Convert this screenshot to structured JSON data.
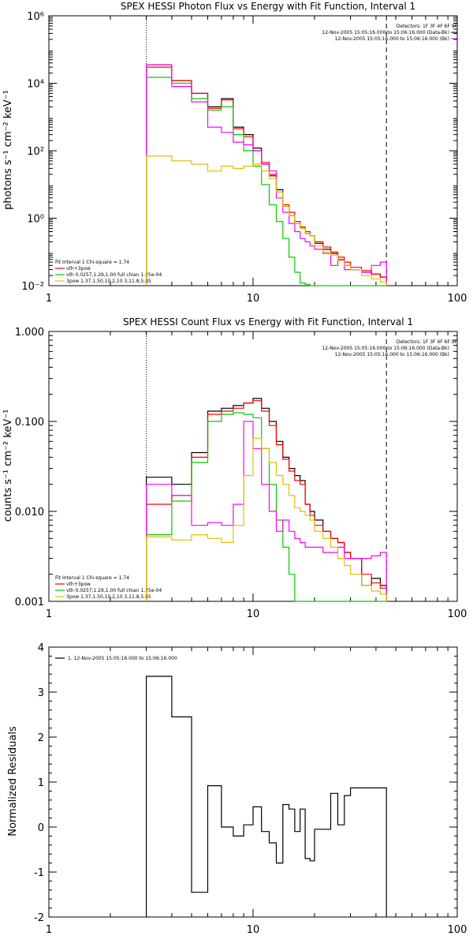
{
  "panels": [
    {
      "title": "SPEX HESSI Photon Flux vs Energy with Fit Function, Interval 1",
      "ylabel": "photons s⁻¹ cm⁻² keV⁻¹",
      "detectors": "Detectors: 1F 3F 4F 6F 9F",
      "info_lines": [
        "12-Nov-2005 15:05:16.000 to 15:06:16.000 (Data-Bk)",
        "12-Nov-2005 15:05:16.000 to 15:06:16.000 (Bk)"
      ],
      "fit_lines": [
        "Fit Interval 1    Chi-square = 1.74",
        "vth+3pow",
        "vth 0.0257,1.29,1.00  full chian 1.25e-04",
        "3pow 1.37,1.50,10.2,10.3,11.8,5.85"
      ]
    },
    {
      "title": "SPEX HESSI Count Flux vs Energy with Fit Function, Interval 1",
      "ylabel": "counts s⁻¹ cm⁻² keV⁻¹",
      "detectors": "Detectors: 1F 3F 4F 6F 9F",
      "info_lines": [
        "12-Nov-2005 15:05:16.000 to 15:06:16.000 (Data-Bk)",
        "12-Nov-2005 15:05:16.000 to 15:06:16.000 (Bk)"
      ],
      "fit_lines": [
        "Fit Interval 1    Chi-square = 1.74",
        "vth+3pow",
        "vth 0.0257,1.29,1.00  full chian 1.25e-04",
        "3pow 1.37,1.50,10.2,10.3,11.8,5.85"
      ]
    },
    {
      "title": "",
      "ylabel": "Normalized Residuals",
      "legend_line": "1. 12-Nov-2005 15:05:16.000 to 15:06:16.000"
    }
  ],
  "chart_data": [
    {
      "type": "line",
      "title": "SPEX HESSI Photon Flux vs Energy with Fit Function, Interval 1",
      "ylabel": "photons s⁻¹ cm⁻² keV⁻¹",
      "xscale": "log",
      "yscale": "log",
      "xlim": [
        1,
        100
      ],
      "ylim": [
        0.01,
        1000000
      ],
      "xticks": [
        1,
        10,
        100
      ],
      "xtick_labels": [
        "1",
        "10",
        "100"
      ],
      "yticks": [
        0.01,
        1,
        100,
        10000,
        1000000
      ],
      "ytick_labels": [
        "10⁻²",
        "10⁰",
        "10²",
        "10⁴",
        "10⁶"
      ],
      "fit_range": [
        3,
        45
      ],
      "bin_edges": [
        3,
        4,
        5,
        6,
        7,
        8,
        9,
        10,
        11,
        12,
        13,
        14,
        15,
        16,
        17,
        18,
        19,
        20,
        22,
        24,
        26,
        28,
        30,
        34,
        38,
        42,
        45
      ],
      "series": [
        {
          "color": "#000000",
          "values": [
            35000,
            12000,
            5000,
            2000,
            3500,
            500,
            300,
            120,
            40,
            18,
            7,
            2.2,
            1.2,
            0.7,
            0.5,
            0.35,
            0.3,
            0.18,
            0.12,
            0.09,
            0.06,
            0.04,
            0.03,
            0.025,
            0.022,
            0.018
          ]
        },
        {
          "color": "#ff0000",
          "values": [
            30000,
            12000,
            5000,
            1800,
            3200,
            450,
            260,
            100,
            45,
            20,
            6,
            2.5,
            1.5,
            0.8,
            0.55,
            0.4,
            0.3,
            0.2,
            0.14,
            0.1,
            0.07,
            0.05,
            0.035,
            0.028,
            0.022,
            0.018
          ]
        },
        {
          "color": "#00cc00",
          "values": [
            15000,
            10000,
            3500,
            1600,
            2000,
            300,
            100,
            35,
            10,
            2.5,
            0.8,
            0.25,
            0.07,
            0.025,
            0.012,
            0.011,
            0.01,
            0.01,
            0.01,
            0.01,
            0.01,
            0.01,
            0.01,
            0.01,
            0.01,
            0.01
          ]
        },
        {
          "color": "#ff00ff",
          "values": [
            35000,
            8000,
            2800,
            500,
            350,
            180,
            150,
            100,
            40,
            25,
            4,
            1.5,
            0.7,
            0.4,
            0.25,
            0.2,
            0.15,
            0.12,
            0.09,
            0.04,
            0.06,
            0.03,
            0.03,
            0.025,
            0.04,
            0.05
          ]
        },
        {
          "color": "#e0c000",
          "values": [
            70,
            50,
            40,
            25,
            35,
            30,
            35,
            40,
            25,
            15,
            6,
            2.2,
            1.2,
            0.7,
            0.5,
            0.35,
            0.3,
            0.15,
            0.1,
            0.08,
            0.055,
            0.04,
            0.03,
            0.02,
            0.016,
            0.013
          ]
        }
      ]
    },
    {
      "type": "line",
      "title": "SPEX HESSI Count Flux vs Energy with Fit Function, Interval 1",
      "ylabel": "counts s⁻¹ cm⁻² keV⁻¹",
      "xscale": "log",
      "yscale": "log",
      "xlim": [
        1,
        100
      ],
      "ylim": [
        0.001,
        1.0
      ],
      "xticks": [
        1,
        10,
        100
      ],
      "xtick_labels": [
        "1",
        "10",
        "100"
      ],
      "yticks": [
        0.001,
        0.01,
        0.1,
        1.0
      ],
      "ytick_labels": [
        "0.001",
        "0.010",
        "0.100",
        "1.000"
      ],
      "fit_range": [
        3,
        45
      ],
      "bin_edges": [
        3,
        4,
        5,
        6,
        7,
        8,
        9,
        10,
        11,
        12,
        13,
        14,
        15,
        16,
        17,
        18,
        19,
        20,
        22,
        24,
        26,
        28,
        30,
        34,
        38,
        42,
        45
      ],
      "series": [
        {
          "color": "#000000",
          "values": [
            0.024,
            0.02,
            0.045,
            0.13,
            0.14,
            0.15,
            0.16,
            0.18,
            0.14,
            0.1,
            0.06,
            0.04,
            0.03,
            0.025,
            0.022,
            0.012,
            0.01,
            0.008,
            0.006,
            0.005,
            0.0045,
            0.0035,
            0.003,
            0.0015,
            0.0018,
            0.0015
          ]
        },
        {
          "color": "#ff0000",
          "values": [
            0.012,
            0.015,
            0.04,
            0.12,
            0.13,
            0.14,
            0.16,
            0.17,
            0.13,
            0.09,
            0.055,
            0.038,
            0.028,
            0.022,
            0.02,
            0.012,
            0.009,
            0.007,
            0.006,
            0.005,
            0.0045,
            0.0035,
            0.003,
            0.002,
            0.0016,
            0.0014
          ]
        },
        {
          "color": "#00cc00",
          "values": [
            0.0055,
            0.013,
            0.035,
            0.1,
            0.12,
            0.125,
            0.12,
            0.11,
            0.05,
            0.02,
            0.008,
            0.004,
            0.002,
            0.001,
            0.001,
            0.001,
            0.001,
            0.001,
            0.001,
            0.001,
            0.001,
            0.001,
            0.001,
            0.001,
            0.001,
            0.001
          ]
        },
        {
          "color": "#ff00ff",
          "values": [
            0.02,
            0.015,
            0.007,
            0.0075,
            0.007,
            0.012,
            0.1,
            0.05,
            0.02,
            0.01,
            0.006,
            0.008,
            0.006,
            0.005,
            0.0045,
            0.004,
            0.004,
            0.004,
            0.0035,
            0.0035,
            0.004,
            0.003,
            0.003,
            0.003,
            0.0032,
            0.0035
          ]
        },
        {
          "color": "#e0c000",
          "values": [
            0.0052,
            0.0048,
            0.0055,
            0.005,
            0.0045,
            0.007,
            0.025,
            0.065,
            0.05,
            0.035,
            0.025,
            0.02,
            0.015,
            0.011,
            0.01,
            0.009,
            0.008,
            0.006,
            0.005,
            0.004,
            0.003,
            0.0025,
            0.002,
            0.0015,
            0.0013,
            0.0012
          ]
        }
      ]
    },
    {
      "type": "line",
      "title": "",
      "ylabel": "Normalized Residuals",
      "xscale": "log",
      "yscale": "linear",
      "xlim": [
        1,
        100
      ],
      "ylim": [
        -2,
        4
      ],
      "xticks": [
        1,
        10,
        100
      ],
      "xtick_labels": [
        "1",
        "10",
        "100"
      ],
      "yticks": [
        -2,
        -1,
        0,
        1,
        2,
        3,
        4
      ],
      "ytick_labels": [
        "-2",
        "-1",
        "0",
        "1",
        "2",
        "3",
        "4"
      ],
      "bin_edges": [
        3,
        4,
        5,
        6,
        7,
        8,
        9,
        10,
        11,
        12,
        13,
        14,
        15,
        16,
        17,
        18,
        19,
        20,
        22,
        24,
        26,
        28,
        30,
        34,
        38,
        42,
        45
      ],
      "series": [
        {
          "name": "1. 12-Nov-2005 15:05:16.000 to 15:06:16.000",
          "color": "#000000",
          "values": [
            3.35,
            2.45,
            -1.45,
            0.92,
            0,
            -0.2,
            0.05,
            0.45,
            -0.1,
            -0.35,
            -0.8,
            0.5,
            0.4,
            -0.1,
            0.4,
            -0.7,
            -0.75,
            -0.05,
            -0.05,
            0.75,
            0.05,
            0.7,
            0.87,
            0.87,
            0.87,
            0.87
          ]
        }
      ]
    }
  ]
}
